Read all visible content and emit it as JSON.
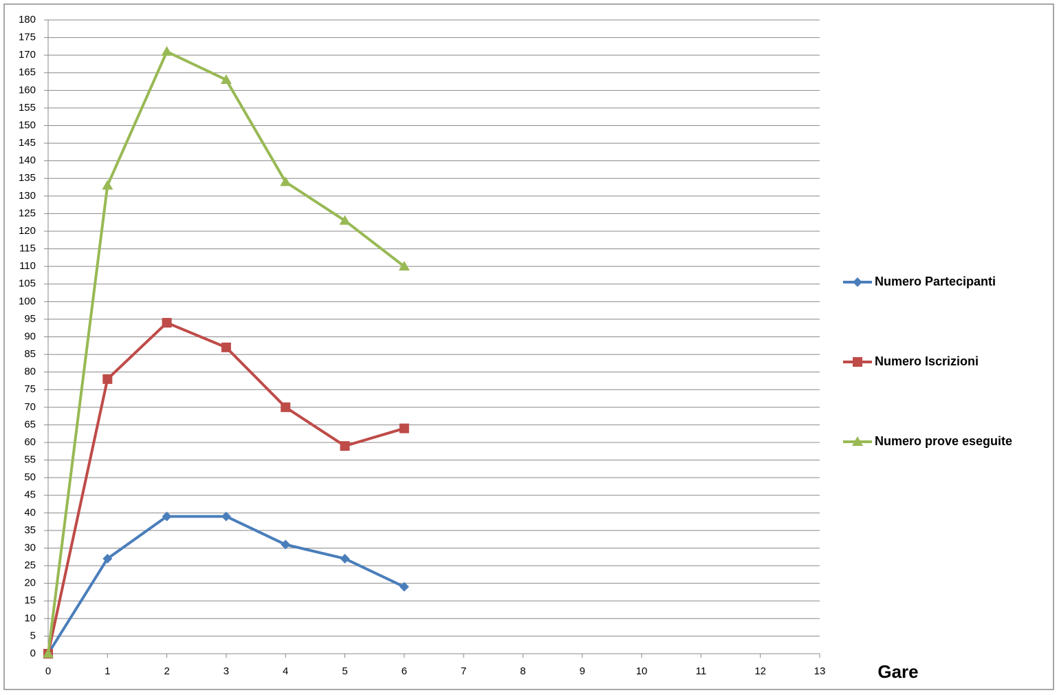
{
  "chart_data": {
    "type": "line",
    "x_label": "Gare",
    "x": [
      0,
      1,
      2,
      3,
      4,
      5,
      6
    ],
    "series": [
      {
        "name": "Numero Partecipanti",
        "color": "#4a7ebb",
        "marker": "diamond",
        "values": [
          0,
          27,
          39,
          39,
          31,
          27,
          19
        ]
      },
      {
        "name": "Numero Iscrizioni",
        "color": "#be4b48",
        "marker": "square",
        "values": [
          0,
          78,
          94,
          87,
          70,
          59,
          64
        ]
      },
      {
        "name": "Numero prove eseguite",
        "color": "#98b954",
        "marker": "triangle",
        "values": [
          0,
          133,
          171,
          163,
          134,
          123,
          110
        ]
      }
    ],
    "xlim": [
      0,
      13
    ],
    "xticks": [
      0,
      1,
      2,
      3,
      4,
      5,
      6,
      7,
      8,
      9,
      10,
      11,
      12,
      13
    ],
    "ylim": [
      0,
      180
    ],
    "yticks": [
      0,
      5,
      10,
      15,
      20,
      25,
      30,
      35,
      40,
      45,
      50,
      55,
      60,
      65,
      70,
      75,
      80,
      85,
      90,
      95,
      100,
      105,
      110,
      115,
      120,
      125,
      130,
      135,
      140,
      145,
      150,
      155,
      160,
      165,
      170,
      175,
      180
    ],
    "grid": true,
    "legend": "right"
  }
}
